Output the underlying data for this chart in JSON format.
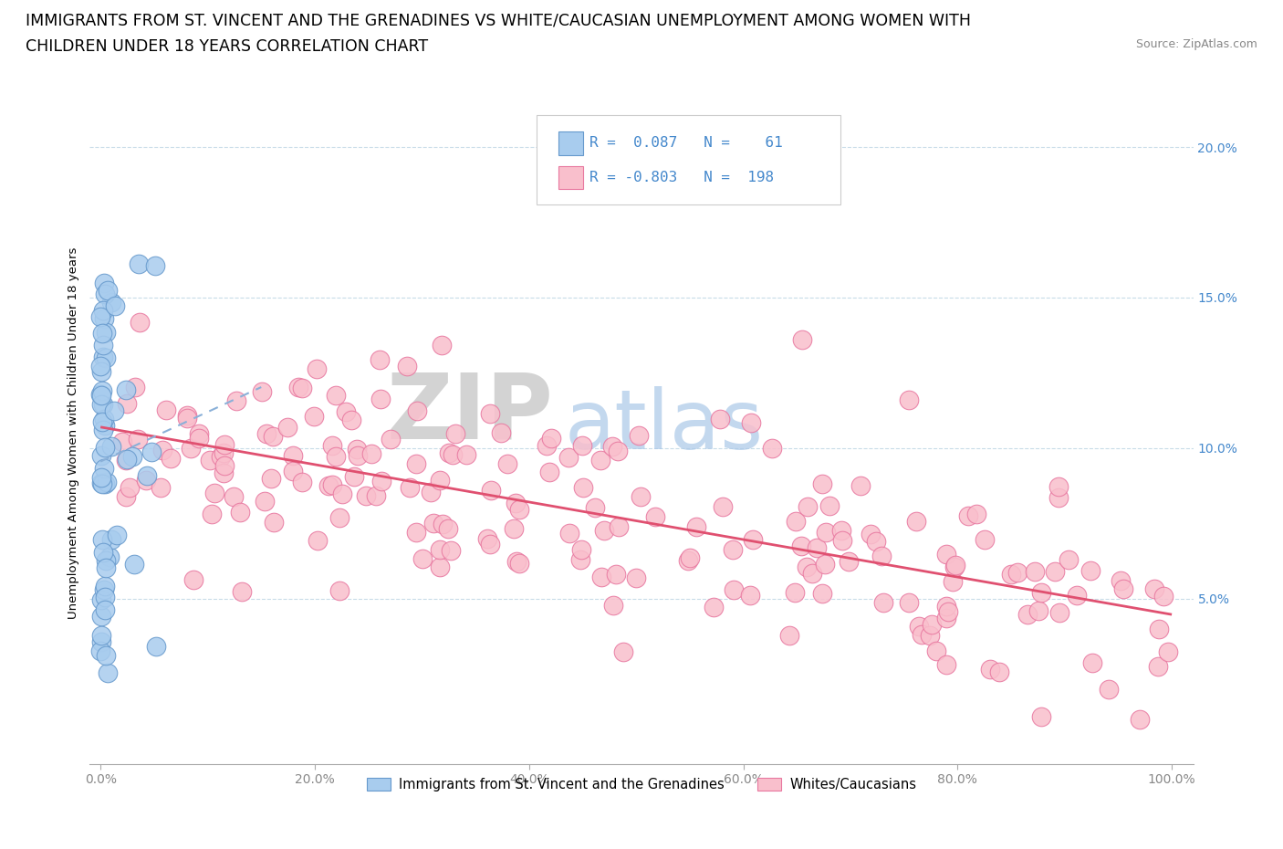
{
  "title_line1": "IMMIGRANTS FROM ST. VINCENT AND THE GRENADINES VS WHITE/CAUCASIAN UNEMPLOYMENT AMONG WOMEN WITH",
  "title_line2": "CHILDREN UNDER 18 YEARS CORRELATION CHART",
  "source": "Source: ZipAtlas.com",
  "ylabel": "Unemployment Among Women with Children Under 18 years",
  "xlim": [
    -0.01,
    1.02
  ],
  "ylim": [
    -0.005,
    0.215
  ],
  "xticks": [
    0.0,
    0.2,
    0.4,
    0.6,
    0.8,
    1.0
  ],
  "xticklabels": [
    "0.0%",
    "20.0%",
    "40.0%",
    "60.0%",
    "80.0%",
    "100.0%"
  ],
  "yticks": [
    0.05,
    0.1,
    0.15,
    0.2
  ],
  "yticklabels": [
    "5.0%",
    "10.0%",
    "15.0%",
    "20.0%"
  ],
  "blue_R": 0.087,
  "blue_N": 61,
  "pink_R": -0.803,
  "pink_N": 198,
  "blue_color": "#A8CCEE",
  "pink_color": "#F9BFCC",
  "blue_edge_color": "#6699CC",
  "pink_edge_color": "#E878A0",
  "pink_line_color": "#E05070",
  "blue_line_color": "#8AB0D8",
  "legend_label_blue": "Immigrants from St. Vincent and the Grenadines",
  "legend_label_pink": "Whites/Caucasians",
  "background_color": "#ffffff",
  "grid_color": "#c8dce8",
  "title_fontsize": 12.5,
  "axis_label_fontsize": 9.5,
  "tick_fontsize": 10,
  "right_tick_color": "#4488CC",
  "x_tick_color": "#888888"
}
